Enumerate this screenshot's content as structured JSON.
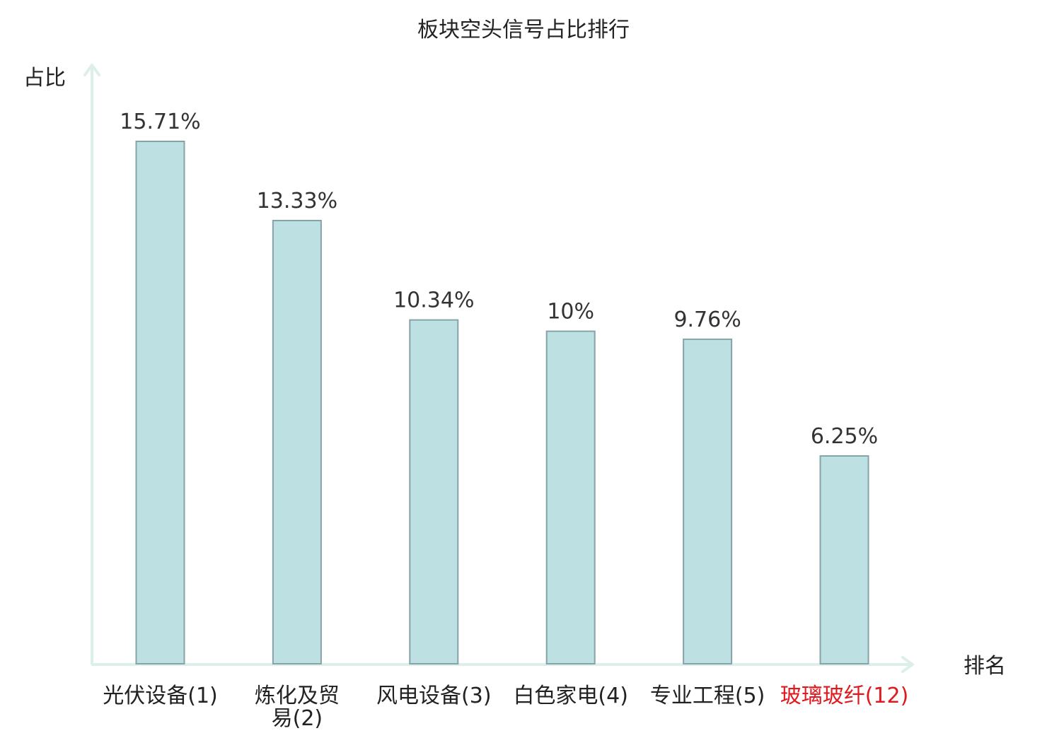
{
  "chart_data": {
    "type": "bar",
    "title": "板块空头信号占比排行",
    "xlabel": "排名",
    "ylabel": "占比",
    "categories": [
      "光伏设备(1)",
      "炼化及贸易(2)",
      "风电设备(3)",
      "白色家电(4)",
      "专业工程(5)",
      "玻璃玻纤(12)"
    ],
    "category_lines": [
      [
        "光伏设备(1)"
      ],
      [
        "炼化及贸",
        "易(2)"
      ],
      [
        "风电设备(3)"
      ],
      [
        "白色家电(4)"
      ],
      [
        "专业工程(5)"
      ],
      [
        "玻璃玻纤(12)"
      ]
    ],
    "values": [
      15.71,
      13.33,
      10.34,
      10,
      9.76,
      6.25
    ],
    "value_labels": [
      "15.71%",
      "13.33%",
      "10.34%",
      "10%",
      "9.76%",
      "6.25%"
    ],
    "highlight_index": 5,
    "ylim": [
      0,
      18.2
    ],
    "grid": false,
    "legend": "none",
    "y_ticks_shown": false
  },
  "colors": {
    "bar_fill": "#bde0e3",
    "bar_stroke": "#86a3a7",
    "axis": "#dcefeb",
    "text": "#222222",
    "value_text": "#333333",
    "highlight_text": "#e0191e"
  }
}
